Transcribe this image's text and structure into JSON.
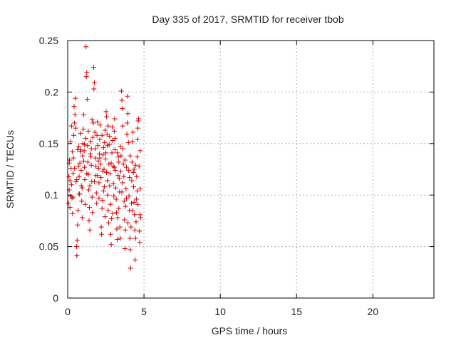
{
  "chart_data": {
    "type": "scatter",
    "title": "Day 335 of 2017, SRMTID for receiver tbob",
    "xlabel": "GPS time / hours",
    "ylabel": "SRMTID / TECUs",
    "xlim": [
      0,
      24
    ],
    "ylim": [
      0,
      0.25
    ],
    "x_ticks": [
      "0",
      "5",
      "10",
      "15",
      "20"
    ],
    "y_ticks": [
      "0",
      "0.05",
      "0.1",
      "0.15",
      "0.2",
      "0.25"
    ],
    "grid": true,
    "marker": "plus",
    "colors": {
      "series": "#d40000",
      "grid": "#b0b0b0",
      "axis": "#000000"
    },
    "series": [
      {
        "points": [
          [
            0.05,
            0.092
          ],
          [
            0.08,
            0.118
          ],
          [
            0.1,
            0.105
          ],
          [
            0.12,
            0.134
          ],
          [
            0.15,
            0.088
          ],
          [
            0.18,
            0.099
          ],
          [
            0.2,
            0.152
          ],
          [
            0.22,
            0.126
          ],
          [
            0.25,
            0.11
          ],
          [
            0.28,
            0.097
          ],
          [
            0.3,
            0.142
          ],
          [
            0.32,
            0.082
          ],
          [
            0.35,
            0.121
          ],
          [
            0.38,
            0.136
          ],
          [
            0.4,
            0.158
          ],
          [
            0.42,
            0.186
          ],
          [
            0.45,
            0.17
          ],
          [
            0.48,
            0.178
          ],
          [
            0.5,
            0.194
          ],
          [
            0.52,
            0.165
          ],
          [
            0.55,
            0.113
          ],
          [
            0.58,
            0.05
          ],
          [
            0.6,
            0.041
          ],
          [
            0.62,
            0.056
          ],
          [
            0.65,
            0.071
          ],
          [
            0.68,
            0.085
          ],
          [
            0.7,
            0.128
          ],
          [
            0.72,
            0.147
          ],
          [
            0.75,
            0.118
          ],
          [
            0.78,
            0.101
          ],
          [
            0.8,
            0.131
          ],
          [
            0.82,
            0.144
          ],
          [
            0.85,
            0.16
          ],
          [
            0.88,
            0.124
          ],
          [
            0.9,
            0.109
          ],
          [
            0.92,
            0.094
          ],
          [
            0.95,
            0.078
          ],
          [
            0.98,
            0.138
          ],
          [
            1.0,
            0.15
          ],
          [
            1.02,
            0.164
          ],
          [
            1.05,
            0.178
          ],
          [
            1.08,
            0.143
          ],
          [
            1.1,
            0.127
          ],
          [
            1.12,
            0.115
          ],
          [
            1.15,
            0.091
          ],
          [
            1.18,
            0.155
          ],
          [
            1.2,
            0.244
          ],
          [
            1.22,
            0.215
          ],
          [
            1.25,
            0.219
          ],
          [
            1.28,
            0.193
          ],
          [
            1.3,
            0.148
          ],
          [
            1.32,
            0.132
          ],
          [
            1.35,
            0.12
          ],
          [
            1.38,
            0.105
          ],
          [
            1.4,
            0.075
          ],
          [
            1.42,
            0.088
          ],
          [
            1.45,
            0.066
          ],
          [
            1.48,
            0.14
          ],
          [
            1.5,
            0.152
          ],
          [
            1.52,
            0.137
          ],
          [
            1.55,
            0.129
          ],
          [
            1.58,
            0.113
          ],
          [
            1.6,
            0.098
          ],
          [
            1.62,
            0.083
          ],
          [
            1.65,
            0.156
          ],
          [
            1.68,
            0.17
          ],
          [
            1.7,
            0.224
          ],
          [
            1.72,
            0.203
          ],
          [
            1.75,
            0.209
          ],
          [
            1.78,
            0.161
          ],
          [
            1.8,
            0.145
          ],
          [
            1.82,
            0.136
          ],
          [
            1.85,
            0.119
          ],
          [
            1.88,
            0.102
          ],
          [
            1.9,
            0.092
          ],
          [
            1.92,
            0.158
          ],
          [
            1.95,
            0.171
          ],
          [
            1.98,
            0.148
          ],
          [
            2.0,
            0.133
          ],
          [
            2.02,
            0.126
          ],
          [
            2.05,
            0.112
          ],
          [
            2.08,
            0.14
          ],
          [
            2.1,
            0.154
          ],
          [
            2.12,
            0.168
          ],
          [
            2.15,
            0.13
          ],
          [
            2.18,
            0.117
          ],
          [
            2.2,
            0.069
          ],
          [
            2.22,
            0.062
          ],
          [
            2.25,
            0.087
          ],
          [
            2.28,
            0.095
          ],
          [
            2.3,
            0.123
          ],
          [
            2.32,
            0.139
          ],
          [
            2.35,
            0.146
          ],
          [
            2.38,
            0.125
          ],
          [
            2.4,
            0.108
          ],
          [
            2.42,
            0.151
          ],
          [
            2.45,
            0.163
          ],
          [
            2.48,
            0.135
          ],
          [
            2.5,
            0.141
          ],
          [
            2.52,
            0.181
          ],
          [
            2.55,
            0.176
          ],
          [
            2.58,
            0.159
          ],
          [
            2.6,
            0.114
          ],
          [
            2.62,
            0.1
          ],
          [
            2.65,
            0.085
          ],
          [
            2.68,
            0.073
          ],
          [
            2.7,
            0.13
          ],
          [
            2.72,
            0.149
          ],
          [
            2.75,
            0.157
          ],
          [
            2.78,
            0.121
          ],
          [
            2.8,
            0.091
          ],
          [
            2.82,
            0.062
          ],
          [
            2.85,
            0.052
          ],
          [
            2.88,
            0.077
          ],
          [
            2.9,
            0.141
          ],
          [
            2.92,
            0.166
          ],
          [
            2.95,
            0.153
          ],
          [
            2.98,
            0.128
          ],
          [
            3.0,
            0.111
          ],
          [
            3.02,
            0.099
          ],
          [
            3.05,
            0.162
          ],
          [
            3.08,
            0.174
          ],
          [
            3.1,
            0.144
          ],
          [
            3.12,
            0.124
          ],
          [
            3.15,
            0.107
          ],
          [
            3.18,
            0.096
          ],
          [
            3.2,
            0.083
          ],
          [
            3.22,
            0.067
          ],
          [
            3.25,
            0.057
          ],
          [
            3.28,
            0.078
          ],
          [
            3.3,
            0.119
          ],
          [
            3.32,
            0.137
          ],
          [
            3.35,
            0.132
          ],
          [
            3.38,
            0.116
          ],
          [
            3.4,
            0.103
          ],
          [
            3.42,
            0.069
          ],
          [
            3.45,
            0.058
          ],
          [
            3.48,
            0.123
          ],
          [
            3.5,
            0.138
          ],
          [
            3.52,
            0.201
          ],
          [
            3.55,
            0.192
          ],
          [
            3.58,
            0.184
          ],
          [
            3.6,
            0.167
          ],
          [
            3.62,
            0.145
          ],
          [
            3.65,
            0.13
          ],
          [
            3.68,
            0.118
          ],
          [
            3.7,
            0.094
          ],
          [
            3.72,
            0.076
          ],
          [
            3.75,
            0.048
          ],
          [
            3.78,
            0.066
          ],
          [
            3.8,
            0.089
          ],
          [
            3.82,
            0.106
          ],
          [
            3.85,
            0.127
          ],
          [
            3.88,
            0.159
          ],
          [
            3.9,
            0.17
          ],
          [
            3.92,
            0.196
          ],
          [
            3.95,
            0.179
          ],
          [
            3.98,
            0.151
          ],
          [
            4.0,
            0.124
          ],
          [
            4.02,
            0.099
          ],
          [
            4.05,
            0.085
          ],
          [
            4.08,
            0.058
          ],
          [
            4.1,
            0.047
          ],
          [
            4.12,
            0.029
          ],
          [
            4.15,
            0.069
          ],
          [
            4.18,
            0.092
          ],
          [
            4.2,
            0.114
          ],
          [
            4.22,
            0.132
          ],
          [
            4.25,
            0.152
          ],
          [
            4.28,
            0.161
          ],
          [
            4.3,
            0.122
          ],
          [
            4.32,
            0.108
          ],
          [
            4.35,
            0.093
          ],
          [
            4.38,
            0.081
          ],
          [
            4.4,
            0.066
          ],
          [
            4.42,
            0.037
          ],
          [
            4.45,
            0.058
          ],
          [
            4.48,
            0.074
          ],
          [
            4.5,
            0.096
          ],
          [
            4.52,
            0.118
          ],
          [
            4.55,
            0.137
          ],
          [
            4.58,
            0.154
          ],
          [
            4.6,
            0.165
          ],
          [
            4.62,
            0.172
          ],
          [
            4.65,
            0.174
          ],
          [
            4.68,
            0.128
          ],
          [
            4.7,
            0.065
          ],
          [
            4.72,
            0.054
          ],
          [
            4.74,
            0.081
          ],
          [
            4.75,
            0.143
          ],
          [
            4.76,
            0.106
          ],
          [
            4.77,
            0.078
          ],
          [
            0.1,
            0.131
          ],
          [
            0.35,
            0.098
          ],
          [
            0.6,
            0.115
          ],
          [
            0.85,
            0.142
          ],
          [
            1.1,
            0.149
          ],
          [
            1.35,
            0.162
          ],
          [
            1.6,
            0.173
          ],
          [
            1.85,
            0.128
          ],
          [
            2.1,
            0.136
          ],
          [
            2.35,
            0.104
          ],
          [
            2.6,
            0.148
          ],
          [
            2.85,
            0.131
          ],
          [
            3.1,
            0.155
          ],
          [
            3.35,
            0.087
          ],
          [
            3.6,
            0.112
          ],
          [
            3.85,
            0.097
          ],
          [
            4.1,
            0.138
          ],
          [
            4.35,
            0.125
          ],
          [
            4.6,
            0.091
          ],
          [
            0.25,
            0.167
          ],
          [
            0.75,
            0.101
          ],
          [
            1.25,
            0.121
          ],
          [
            1.75,
            0.113
          ],
          [
            2.25,
            0.158
          ],
          [
            2.75,
            0.109
          ],
          [
            3.25,
            0.141
          ],
          [
            3.75,
            0.134
          ],
          [
            4.25,
            0.085
          ],
          [
            0.45,
            0.126
          ],
          [
            1.05,
            0.133
          ],
          [
            1.55,
            0.145
          ],
          [
            2.05,
            0.097
          ],
          [
            2.55,
            0.122
          ],
          [
            3.05,
            0.127
          ],
          [
            3.55,
            0.103
          ],
          [
            4.05,
            0.117
          ],
          [
            4.55,
            0.104
          ],
          [
            0.65,
            0.144
          ],
          [
            1.45,
            0.109
          ],
          [
            2.45,
            0.079
          ],
          [
            3.45,
            0.147
          ],
          [
            4.45,
            0.129
          ],
          [
            0.15,
            0.114
          ],
          [
            2.95,
            0.082
          ],
          [
            3.95,
            0.073
          ],
          [
            1.95,
            0.119
          ],
          [
            0.95,
            0.107
          ],
          [
            2.65,
            0.167
          ]
        ]
      }
    ]
  }
}
